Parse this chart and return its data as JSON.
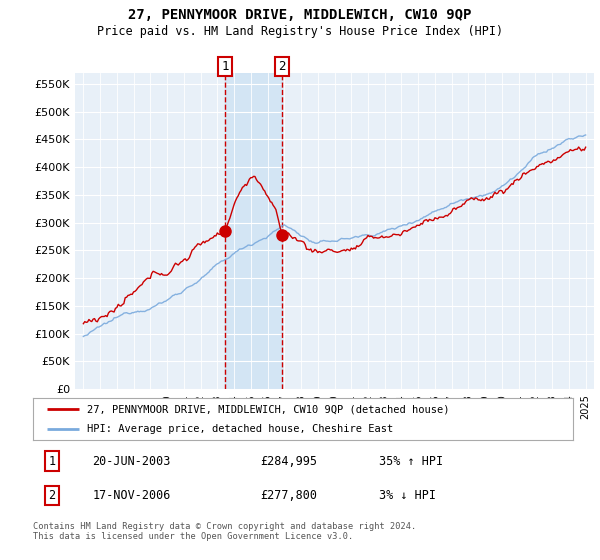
{
  "title": "27, PENNYMOOR DRIVE, MIDDLEWICH, CW10 9QP",
  "subtitle": "Price paid vs. HM Land Registry's House Price Index (HPI)",
  "ylabel_ticks": [
    "£0",
    "£50K",
    "£100K",
    "£150K",
    "£200K",
    "£250K",
    "£300K",
    "£350K",
    "£400K",
    "£450K",
    "£500K",
    "£550K"
  ],
  "ytick_values": [
    0,
    50000,
    100000,
    150000,
    200000,
    250000,
    300000,
    350000,
    400000,
    450000,
    500000,
    550000
  ],
  "ylim": [
    0,
    570000
  ],
  "legend_line1": "27, PENNYMOOR DRIVE, MIDDLEWICH, CW10 9QP (detached house)",
  "legend_line2": "HPI: Average price, detached house, Cheshire East",
  "sale1_date": "20-JUN-2003",
  "sale1_price": 284995,
  "sale1_hpi": "35% ↑ HPI",
  "sale1_label": "1",
  "sale2_date": "17-NOV-2006",
  "sale2_price": 277800,
  "sale2_hpi": "3% ↓ HPI",
  "sale2_label": "2",
  "footer": "Contains HM Land Registry data © Crown copyright and database right 2024.\nThis data is licensed under the Open Government Licence v3.0.",
  "line_color_red": "#cc0000",
  "line_color_blue": "#7aaadd",
  "marker_color_red": "#cc0000",
  "bg_color": "#e8f0f8",
  "shade_color": "#d0e4f4",
  "sale1_year": 2003.47,
  "sale2_year": 2006.88
}
